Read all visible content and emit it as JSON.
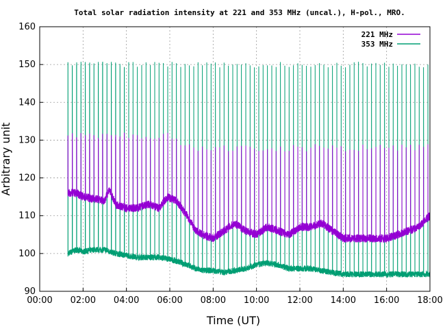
{
  "chart_data": {
    "type": "line",
    "title": "Total solar radiation intensity at 221 and 353 MHz (uncal.), H-pol., MRO.",
    "xlabel": "Time (UT)",
    "ylabel": "Arbitrary unit",
    "xlim": [
      0,
      18
    ],
    "ylim": [
      90,
      160
    ],
    "x_ticks": [
      "00:00",
      "02:00",
      "04:00",
      "06:00",
      "08:00",
      "10:00",
      "12:00",
      "14:00",
      "16:00",
      "18:00"
    ],
    "x_tick_values": [
      0,
      2,
      4,
      6,
      8,
      10,
      12,
      14,
      16,
      18
    ],
    "y_ticks": [
      90,
      100,
      110,
      120,
      130,
      140,
      150,
      160
    ],
    "grid": true,
    "legend_position": "top-right",
    "series": [
      {
        "name": "221 MHz",
        "color": "#9400d3",
        "x": [
          1.3,
          1.7,
          2.0,
          2.5,
          3.0,
          3.2,
          3.5,
          4.0,
          4.5,
          5.0,
          5.5,
          5.9,
          6.3,
          6.8,
          7.2,
          7.5,
          8.0,
          8.5,
          9.0,
          9.5,
          10.0,
          10.5,
          11.0,
          11.5,
          12.0,
          12.5,
          13.0,
          13.5,
          14.0,
          14.5,
          15.0,
          15.5,
          16.0,
          16.5,
          17.0,
          17.5,
          17.8,
          18.0
        ],
        "values": [
          116,
          116,
          115,
          114.5,
          114,
          117,
          113,
          112,
          112,
          113,
          112,
          115,
          114,
          110,
          106,
          105,
          104,
          106,
          108,
          106,
          105,
          107,
          106,
          105,
          107,
          107,
          108,
          106,
          104,
          104,
          104,
          104,
          104,
          105,
          106,
          107,
          109,
          110
        ],
        "spikes": {
          "interval_hours": 0.2,
          "start": 1.3,
          "peak_values_early": 131,
          "peak_values_late": 128
        }
      },
      {
        "name": "353 MHz",
        "color": "#009e73",
        "x": [
          1.3,
          1.7,
          2.0,
          2.5,
          3.0,
          3.5,
          4.0,
          4.5,
          5.0,
          5.5,
          6.0,
          6.3,
          6.8,
          7.2,
          7.5,
          8.0,
          8.5,
          9.0,
          9.5,
          10.0,
          10.5,
          11.0,
          11.5,
          12.0,
          12.5,
          13.0,
          13.5,
          14.0,
          14.5,
          15.0,
          15.5,
          16.0,
          16.5,
          17.0,
          17.5,
          18.0
        ],
        "values": [
          100,
          101,
          100.5,
          101,
          101,
          100,
          99.5,
          99,
          99,
          99,
          98.5,
          98,
          97,
          96,
          95.5,
          95.5,
          95,
          95.5,
          96,
          97,
          97.5,
          97,
          96,
          96,
          96,
          95.5,
          95,
          94.5,
          94.5,
          94.5,
          94.5,
          94.5,
          94.5,
          94.5,
          94.5,
          94.5
        ],
        "spikes": {
          "interval_hours": 0.2,
          "start": 1.3,
          "peak_values": 150,
          "plateau_values": 125
        }
      }
    ]
  }
}
